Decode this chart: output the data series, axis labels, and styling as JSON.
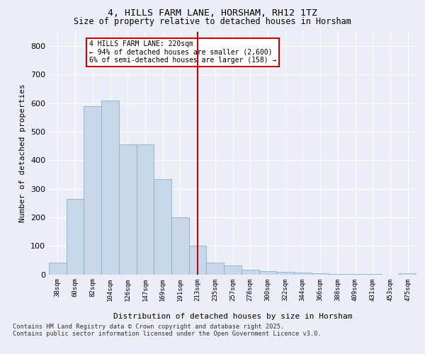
{
  "title1": "4, HILLS FARM LANE, HORSHAM, RH12 1TZ",
  "title2": "Size of property relative to detached houses in Horsham",
  "xlabel": "Distribution of detached houses by size in Horsham",
  "ylabel": "Number of detached properties",
  "categories": [
    "38sqm",
    "60sqm",
    "82sqm",
    "104sqm",
    "126sqm",
    "147sqm",
    "169sqm",
    "191sqm",
    "213sqm",
    "235sqm",
    "257sqm",
    "278sqm",
    "300sqm",
    "322sqm",
    "344sqm",
    "366sqm",
    "388sqm",
    "409sqm",
    "431sqm",
    "453sqm",
    "475sqm"
  ],
  "values": [
    42,
    265,
    590,
    610,
    455,
    455,
    335,
    200,
    100,
    40,
    30,
    15,
    12,
    8,
    5,
    3,
    2,
    1,
    1,
    0,
    3
  ],
  "bar_color": "#c8d8ea",
  "bar_edge_color": "#8ab0cc",
  "vline_x_index": 8,
  "vline_color": "#cc0000",
  "annotation_title": "4 HILLS FARM LANE: 220sqm",
  "annotation_line1": "← 94% of detached houses are smaller (2,600)",
  "annotation_line2": "6% of semi-detached houses are larger (158) →",
  "annotation_box_color": "#cc0000",
  "annotation_bg": "#ffffff",
  "ylim": [
    0,
    850
  ],
  "yticks": [
    0,
    100,
    200,
    300,
    400,
    500,
    600,
    700,
    800
  ],
  "footer1": "Contains HM Land Registry data © Crown copyright and database right 2025.",
  "footer2": "Contains public sector information licensed under the Open Government Licence v3.0.",
  "bg_color": "#eaeff7",
  "plot_bg_color": "#eaeff7",
  "grid_color": "#ffffff"
}
